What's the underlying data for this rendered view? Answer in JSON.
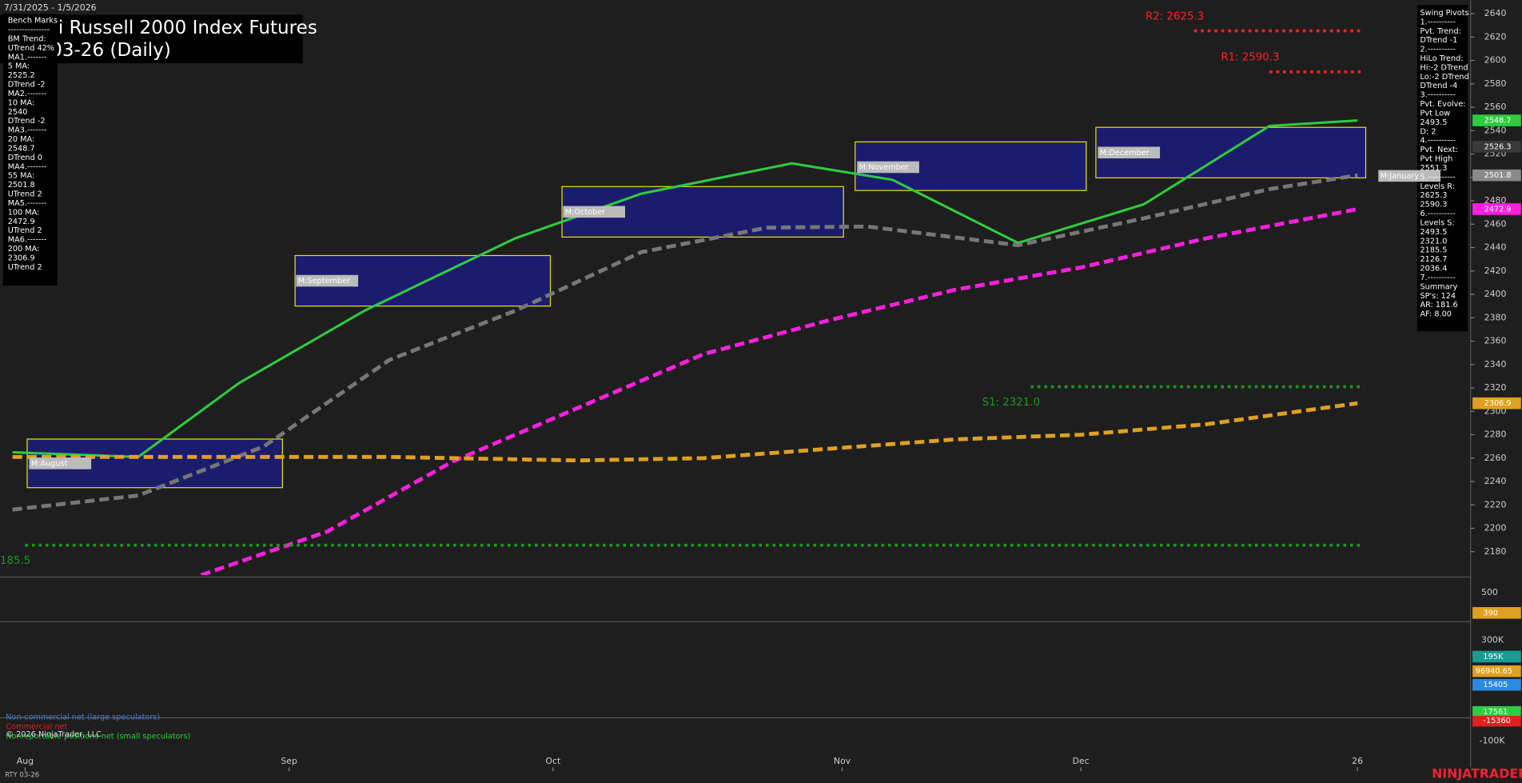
{
  "header": {
    "date_range": "7/31/2025 - 1/5/2026",
    "title_line1": "i Russell 2000 Index Futures",
    "title_line2": "03-26 (Daily)",
    "symbol": "RTY 03-26",
    "brand": "NINJATRADER"
  },
  "bench_marks": [
    "Bench Marks",
    "---------------",
    "BM Trend:",
    "UTrend 42%",
    "MA1.-------",
    "5 MA:",
    "2525.2",
    "DTrend -2",
    "MA2.-------",
    "10 MA:",
    "2540",
    "DTrend -2",
    "MA3.-------",
    "20 MA:",
    "2548.7",
    "DTrend 0",
    "MA4.-------",
    "55 MA:",
    "2501.8",
    "UTrend 2",
    "MA5.-------",
    "100 MA:",
    "2472.9",
    "UTrend 2",
    "MA6.-------",
    "200 MA:",
    "2306.9",
    "UTrend 2"
  ],
  "swing_pivots": [
    "Swing Pivots",
    "1.----------",
    "Pvt. Trend:",
    "DTrend -1",
    "2.----------",
    "HiLo Trend:",
    "Hi:-2 DTrend",
    "Lo:-2 DTrend",
    "DTrend -4",
    "3.----------",
    "Pvt. Evolve:",
    "Pvt Low",
    "2493.5",
    "D: 2",
    "4.----------",
    "Pvt. Next:",
    "Pvt High",
    "2551.3",
    "5.----------",
    "Levels R:",
    "2625.3",
    "2590.3",
    "6.----------",
    "Levels S:",
    "2493.5",
    "2321.0",
    "2185.5",
    "2126.7",
    "2036.4",
    "7.----------",
    "Summary",
    "SP's: 124",
    "AR: 181.6",
    "AF: 8.00"
  ],
  "chart_data": {
    "type": "line",
    "categories": [
      "Aug",
      "Sep",
      "Oct",
      "Nov",
      "Dec",
      "26"
    ],
    "category_x": [
      1,
      22,
      43,
      66,
      85,
      107
    ],
    "xlim": [
      -1,
      116
    ],
    "ylim": [
      2160,
      2651.6
    ],
    "yticks": [
      2180,
      2200,
      2220,
      2240,
      2260,
      2280,
      2300,
      2320,
      2340,
      2360,
      2380,
      2400,
      2420,
      2440,
      2460,
      2480,
      2500,
      2520,
      2540,
      2560,
      2580,
      2600,
      2620,
      2640
    ],
    "series": [
      {
        "name": "20 MA",
        "color": "#2ecc40",
        "dash": false,
        "x": [
          0,
          10,
          18,
          28,
          40,
          50,
          62,
          70,
          80,
          90,
          100,
          107
        ],
        "values": [
          2265,
          2261,
          2324,
          2386,
          2448,
          2486,
          2512,
          2498,
          2444,
          2477,
          2544,
          2548.7
        ]
      },
      {
        "name": "55 MA",
        "color": "#777777",
        "dash": true,
        "x": [
          0,
          10,
          20,
          30,
          40,
          50,
          60,
          68,
          80,
          90,
          100,
          107
        ],
        "values": [
          2216,
          2228,
          2270,
          2344,
          2386,
          2436,
          2457,
          2458,
          2442,
          2465,
          2490,
          2501.8
        ]
      },
      {
        "name": "100 MA",
        "color": "#ff1fe0",
        "dash": true,
        "x": [
          15,
          25,
          35,
          45,
          55,
          65,
          75,
          85,
          95,
          107
        ],
        "values": [
          2160,
          2197,
          2257,
          2303,
          2349,
          2378,
          2404,
          2423,
          2448,
          2472.9
        ]
      },
      {
        "name": "200 MA",
        "color": "#e0a020",
        "dash": true,
        "x": [
          0,
          20,
          30,
          45,
          55,
          65,
          75,
          85,
          95,
          107
        ],
        "values": [
          2261,
          2261,
          2261,
          2258,
          2260,
          2268,
          2276,
          2280,
          2289,
          2306.9
        ]
      }
    ],
    "pivots": [
      {
        "label": "R2: 2625.3",
        "value": 2625.3,
        "from": 94,
        "color": "#ff2020"
      },
      {
        "label": "R1: 2590.3",
        "value": 2590.3,
        "from": 100,
        "color": "#ff2020"
      },
      {
        "label": "S1: 2321.0",
        "value": 2321.0,
        "from": 81,
        "color": "#1a9a1a"
      },
      {
        "label": "185.5",
        "value": 2185.5,
        "from": 1,
        "color": "#1a9a1a"
      }
    ],
    "price_tags": [
      {
        "label": "2548.7",
        "value": 2548.7,
        "color": "#2ecc40"
      },
      {
        "label": "2526.3",
        "value": 2526.3,
        "color": "#3a3a3a"
      },
      {
        "label": "2501.8",
        "value": 2501.8,
        "color": "#8a8a8a"
      },
      {
        "label": "2472.9",
        "value": 2472.9,
        "color": "#ff1fe0"
      },
      {
        "label": "2306.9",
        "value": 2306.9,
        "color": "#e0a020"
      }
    ],
    "month_labels": [
      "M:August",
      "M:September",
      "M:October",
      "M:November",
      "M:December",
      "M:January"
    ],
    "lower_panels": {
      "vol_tick": "500",
      "vol_tag": "390",
      "volume_tick": "300K",
      "volume_tags": [
        "195K",
        "96940.65",
        "15405"
      ],
      "cot_tags": [
        "17561",
        "-15360"
      ],
      "cot_tick": "-100K"
    },
    "legend": [
      "Non-commercial net (large speculators)",
      "Commercial net",
      "Nonreportable positions net (small speculators)"
    ],
    "copyright": "© 2026 NinjaTrader, LLC"
  }
}
